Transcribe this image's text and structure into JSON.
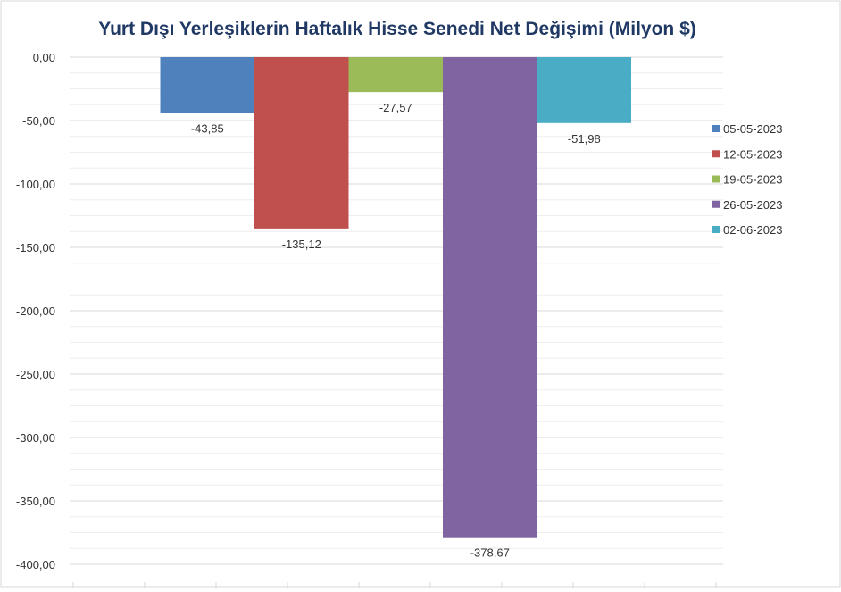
{
  "chart_data": {
    "type": "bar",
    "title": "Yurt Dışı Yerleşiklerin Haftalık Hisse Senedi Net Değişimi (Milyon $)",
    "xlabel": "",
    "ylabel": "",
    "ylim": [
      -400,
      0
    ],
    "y_ticks": [
      0,
      -50,
      -100,
      -150,
      -200,
      -250,
      -300,
      -350,
      -400
    ],
    "y_tick_labels": [
      "0,00",
      "-50,00",
      "-100,00",
      "-150,00",
      "-200,00",
      "-250,00",
      "-300,00",
      "-350,00",
      "-400,00"
    ],
    "grid": true,
    "legend_position": "right",
    "series": [
      {
        "name": "05-05-2023",
        "value": -43.85,
        "label": "-43,85",
        "color": "#4F81BD"
      },
      {
        "name": "12-05-2023",
        "value": -135.12,
        "label": "-135,12",
        "color": "#C0504D"
      },
      {
        "name": "19-05-2023",
        "value": -27.57,
        "label": "-27,57",
        "color": "#9BBB59"
      },
      {
        "name": "26-05-2023",
        "value": -378.67,
        "label": "-378,67",
        "color": "#8064A2"
      },
      {
        "name": "02-06-2023",
        "value": -51.98,
        "label": "-51,98",
        "color": "#4BACC6"
      }
    ]
  },
  "colors": {
    "title": "#1F3864",
    "gridline": "#D9D9D9",
    "minor_gridline": "#EEEEEE",
    "text": "#333333"
  }
}
